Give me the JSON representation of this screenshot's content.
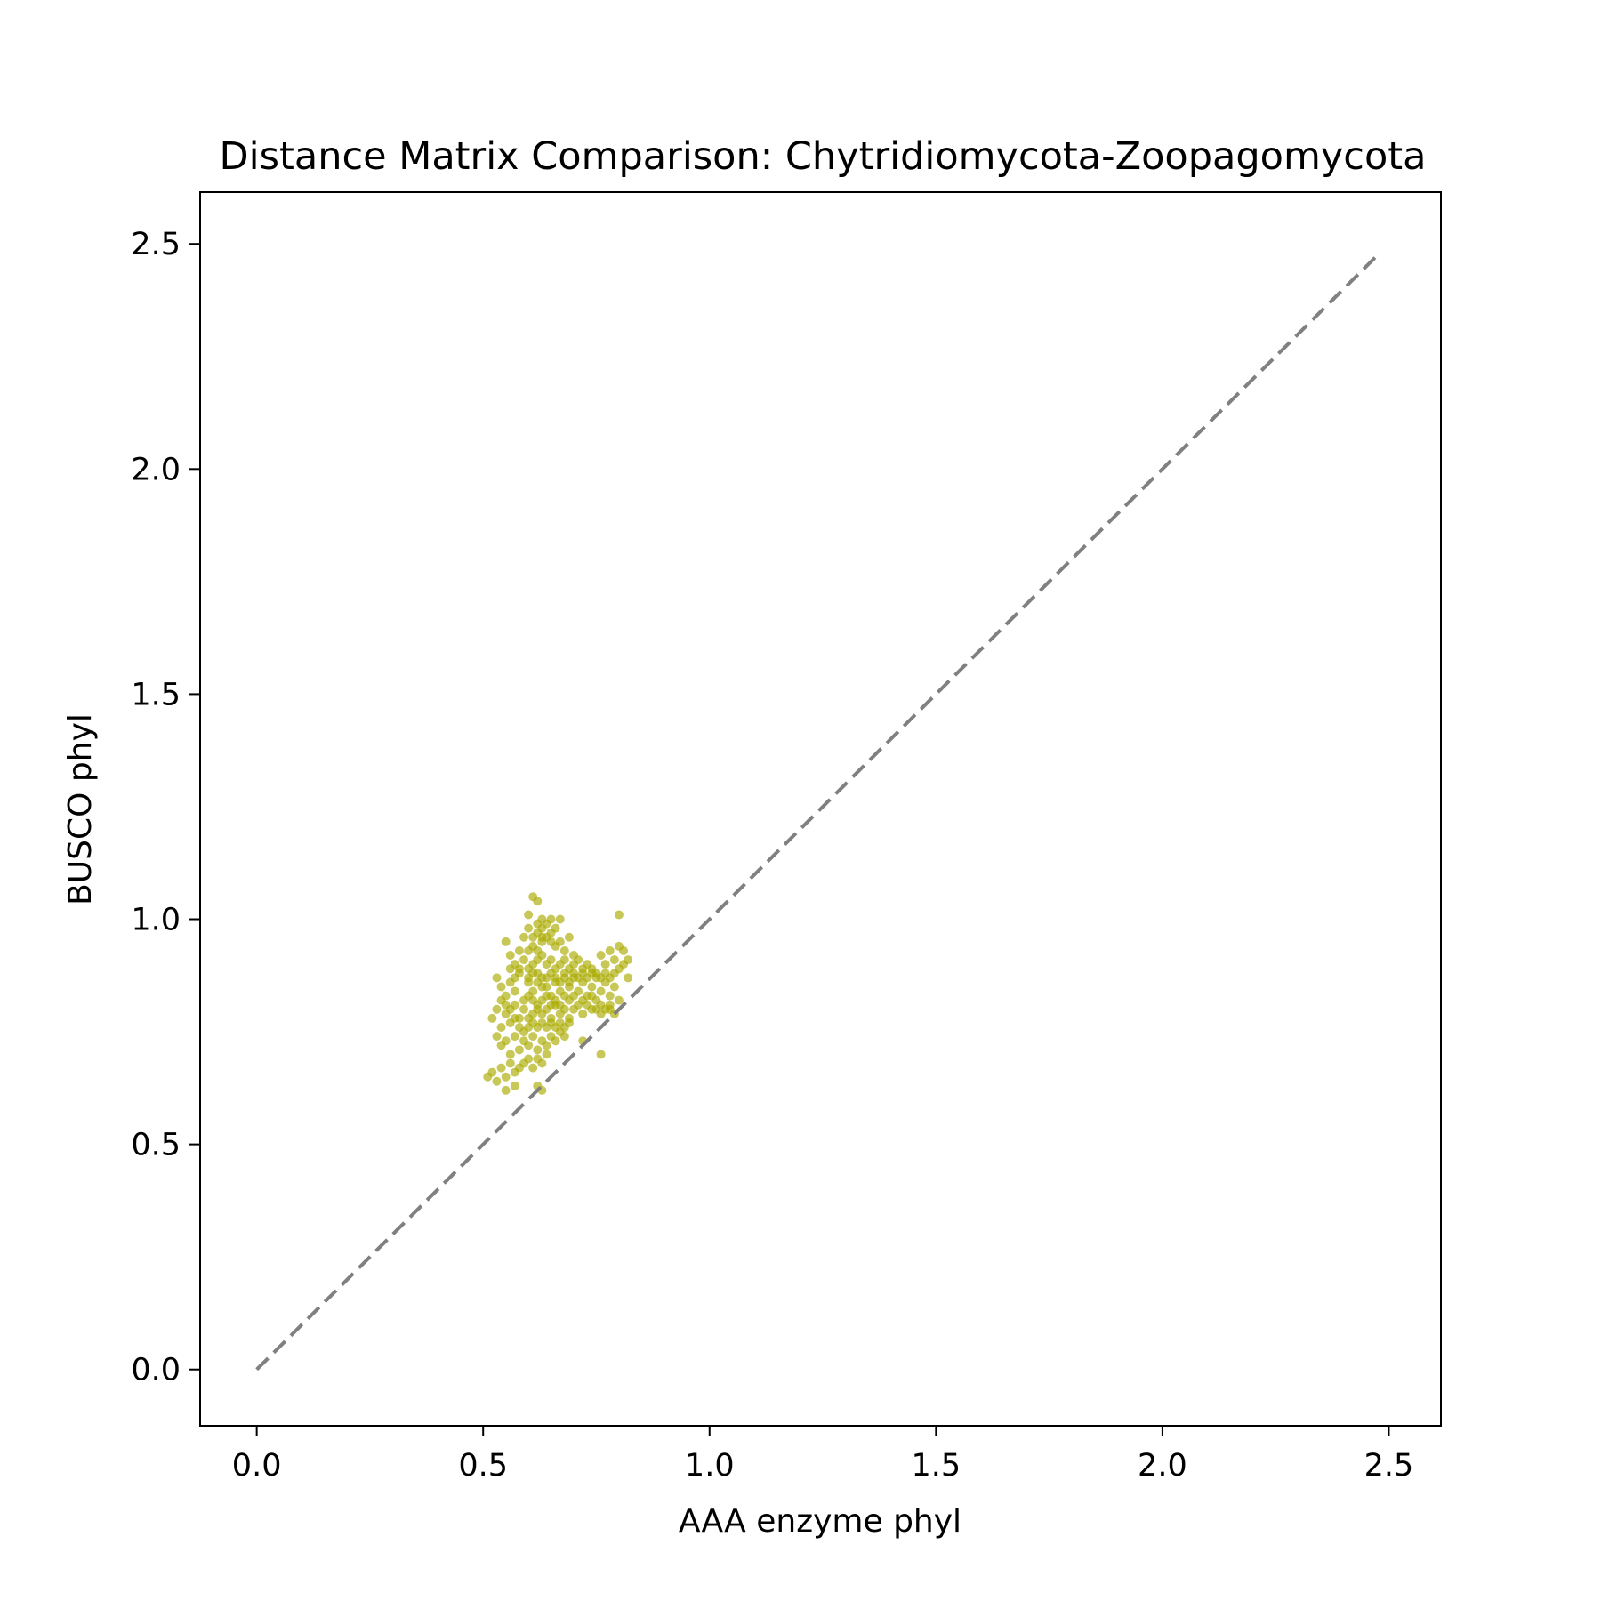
{
  "chart_data": {
    "type": "scatter",
    "title": "Distance Matrix Comparison: Chytridiomycota-Zoopagomycota",
    "xlabel": "AAA enzyme phyl",
    "ylabel": "BUSCO phyl",
    "xlim": [
      -0.125,
      2.615
    ],
    "ylim": [
      -0.125,
      2.615
    ],
    "xticks": [
      "0.0",
      "0.5",
      "1.0",
      "1.5",
      "2.0",
      "2.5"
    ],
    "yticks": [
      "0.0",
      "0.5",
      "1.0",
      "1.5",
      "2.0",
      "2.5"
    ],
    "grid": false,
    "point_color": "#aaaa00",
    "reference_line": {
      "style": "dashed",
      "color": "#808080",
      "from": [
        0.0,
        0.0
      ],
      "to": [
        2.48,
        2.48
      ]
    },
    "series": [
      {
        "points": [
          [
            0.61,
            1.05
          ],
          [
            0.62,
            1.04
          ],
          [
            0.6,
            1.01
          ],
          [
            0.63,
            1.0
          ],
          [
            0.65,
            1.0
          ],
          [
            0.67,
            1.0
          ],
          [
            0.8,
            1.01
          ],
          [
            0.55,
            0.95
          ],
          [
            0.56,
            0.92
          ],
          [
            0.57,
            0.9
          ],
          [
            0.58,
            0.93
          ],
          [
            0.59,
            0.96
          ],
          [
            0.6,
            0.98
          ],
          [
            0.61,
            0.94
          ],
          [
            0.62,
            0.97
          ],
          [
            0.63,
            0.95
          ],
          [
            0.64,
            0.96
          ],
          [
            0.65,
            0.97
          ],
          [
            0.66,
            0.94
          ],
          [
            0.67,
            0.95
          ],
          [
            0.68,
            0.93
          ],
          [
            0.69,
            0.96
          ],
          [
            0.7,
            0.92
          ],
          [
            0.71,
            0.91
          ],
          [
            0.72,
            0.89
          ],
          [
            0.73,
            0.9
          ],
          [
            0.74,
            0.88
          ],
          [
            0.75,
            0.87
          ],
          [
            0.76,
            0.92
          ],
          [
            0.77,
            0.9
          ],
          [
            0.78,
            0.93
          ],
          [
            0.79,
            0.91
          ],
          [
            0.8,
            0.94
          ],
          [
            0.81,
            0.93
          ],
          [
            0.82,
            0.87
          ],
          [
            0.53,
            0.87
          ],
          [
            0.54,
            0.85
          ],
          [
            0.55,
            0.83
          ],
          [
            0.56,
            0.86
          ],
          [
            0.57,
            0.84
          ],
          [
            0.58,
            0.88
          ],
          [
            0.59,
            0.82
          ],
          [
            0.6,
            0.86
          ],
          [
            0.61,
            0.84
          ],
          [
            0.62,
            0.88
          ],
          [
            0.63,
            0.85
          ],
          [
            0.64,
            0.87
          ],
          [
            0.65,
            0.83
          ],
          [
            0.66,
            0.86
          ],
          [
            0.67,
            0.84
          ],
          [
            0.68,
            0.88
          ],
          [
            0.69,
            0.85
          ],
          [
            0.7,
            0.87
          ],
          [
            0.71,
            0.84
          ],
          [
            0.72,
            0.86
          ],
          [
            0.73,
            0.83
          ],
          [
            0.74,
            0.85
          ],
          [
            0.75,
            0.82
          ],
          [
            0.76,
            0.84
          ],
          [
            0.77,
            0.86
          ],
          [
            0.78,
            0.83
          ],
          [
            0.79,
            0.85
          ],
          [
            0.8,
            0.82
          ],
          [
            0.52,
            0.78
          ],
          [
            0.53,
            0.8
          ],
          [
            0.54,
            0.76
          ],
          [
            0.55,
            0.79
          ],
          [
            0.56,
            0.77
          ],
          [
            0.57,
            0.81
          ],
          [
            0.58,
            0.78
          ],
          [
            0.59,
            0.8
          ],
          [
            0.6,
            0.76
          ],
          [
            0.61,
            0.79
          ],
          [
            0.62,
            0.81
          ],
          [
            0.63,
            0.77
          ],
          [
            0.64,
            0.8
          ],
          [
            0.65,
            0.78
          ],
          [
            0.66,
            0.81
          ],
          [
            0.67,
            0.79
          ],
          [
            0.68,
            0.8
          ],
          [
            0.69,
            0.78
          ],
          [
            0.7,
            0.8
          ],
          [
            0.72,
            0.79
          ],
          [
            0.74,
            0.8
          ],
          [
            0.76,
            0.79
          ],
          [
            0.78,
            0.8
          ],
          [
            0.79,
            0.79
          ],
          [
            0.53,
            0.74
          ],
          [
            0.54,
            0.72
          ],
          [
            0.55,
            0.73
          ],
          [
            0.56,
            0.7
          ],
          [
            0.57,
            0.74
          ],
          [
            0.58,
            0.71
          ],
          [
            0.59,
            0.73
          ],
          [
            0.6,
            0.72
          ],
          [
            0.61,
            0.74
          ],
          [
            0.62,
            0.71
          ],
          [
            0.63,
            0.73
          ],
          [
            0.64,
            0.72
          ],
          [
            0.65,
            0.74
          ],
          [
            0.66,
            0.73
          ],
          [
            0.67,
            0.75
          ],
          [
            0.68,
            0.74
          ],
          [
            0.72,
            0.73
          ],
          [
            0.76,
            0.7
          ],
          [
            0.51,
            0.65
          ],
          [
            0.52,
            0.66
          ],
          [
            0.53,
            0.64
          ],
          [
            0.54,
            0.67
          ],
          [
            0.55,
            0.65
          ],
          [
            0.56,
            0.68
          ],
          [
            0.57,
            0.66
          ],
          [
            0.58,
            0.67
          ],
          [
            0.59,
            0.68
          ],
          [
            0.6,
            0.69
          ],
          [
            0.61,
            0.67
          ],
          [
            0.62,
            0.69
          ],
          [
            0.63,
            0.68
          ],
          [
            0.64,
            0.7
          ],
          [
            0.55,
            0.62
          ],
          [
            0.57,
            0.63
          ],
          [
            0.62,
            0.63
          ],
          [
            0.63,
            0.62
          ],
          [
            0.6,
            0.89
          ],
          [
            0.61,
            0.9
          ],
          [
            0.62,
            0.91
          ],
          [
            0.63,
            0.92
          ],
          [
            0.64,
            0.9
          ],
          [
            0.65,
            0.91
          ],
          [
            0.66,
            0.89
          ],
          [
            0.67,
            0.9
          ],
          [
            0.68,
            0.91
          ],
          [
            0.69,
            0.89
          ],
          [
            0.7,
            0.9
          ],
          [
            0.59,
            0.91
          ],
          [
            0.58,
            0.89
          ],
          [
            0.57,
            0.87
          ],
          [
            0.56,
            0.89
          ],
          [
            0.6,
            0.83
          ],
          [
            0.61,
            0.82
          ],
          [
            0.62,
            0.8
          ],
          [
            0.63,
            0.82
          ],
          [
            0.64,
            0.83
          ],
          [
            0.65,
            0.81
          ],
          [
            0.66,
            0.82
          ],
          [
            0.67,
            0.81
          ],
          [
            0.68,
            0.83
          ],
          [
            0.69,
            0.82
          ],
          [
            0.7,
            0.83
          ],
          [
            0.71,
            0.81
          ],
          [
            0.72,
            0.82
          ],
          [
            0.73,
            0.81
          ],
          [
            0.74,
            0.83
          ],
          [
            0.75,
            0.8
          ],
          [
            0.76,
            0.81
          ],
          [
            0.77,
            0.8
          ],
          [
            0.78,
            0.81
          ],
          [
            0.58,
            0.76
          ],
          [
            0.59,
            0.75
          ],
          [
            0.6,
            0.78
          ],
          [
            0.61,
            0.77
          ],
          [
            0.62,
            0.76
          ],
          [
            0.63,
            0.79
          ],
          [
            0.64,
            0.76
          ],
          [
            0.65,
            0.77
          ],
          [
            0.66,
            0.76
          ],
          [
            0.67,
            0.77
          ],
          [
            0.68,
            0.76
          ],
          [
            0.69,
            0.77
          ],
          [
            0.57,
            0.78
          ],
          [
            0.56,
            0.8
          ],
          [
            0.55,
            0.81
          ],
          [
            0.54,
            0.82
          ],
          [
            0.6,
            0.93
          ],
          [
            0.61,
            0.96
          ],
          [
            0.62,
            0.99
          ],
          [
            0.63,
            0.98
          ],
          [
            0.64,
            0.99
          ],
          [
            0.65,
            0.95
          ],
          [
            0.66,
            0.98
          ],
          [
            0.62,
            0.93
          ],
          [
            0.63,
            0.96
          ],
          [
            0.6,
            0.87
          ],
          [
            0.61,
            0.88
          ],
          [
            0.62,
            0.86
          ],
          [
            0.63,
            0.87
          ],
          [
            0.64,
            0.85
          ],
          [
            0.65,
            0.88
          ],
          [
            0.66,
            0.87
          ],
          [
            0.67,
            0.86
          ],
          [
            0.68,
            0.87
          ],
          [
            0.69,
            0.86
          ],
          [
            0.7,
            0.88
          ],
          [
            0.71,
            0.87
          ],
          [
            0.72,
            0.88
          ],
          [
            0.73,
            0.87
          ],
          [
            0.74,
            0.89
          ],
          [
            0.75,
            0.88
          ],
          [
            0.76,
            0.87
          ],
          [
            0.77,
            0.88
          ],
          [
            0.78,
            0.87
          ],
          [
            0.79,
            0.88
          ],
          [
            0.8,
            0.89
          ],
          [
            0.81,
            0.9
          ],
          [
            0.82,
            0.91
          ]
        ]
      }
    ]
  }
}
